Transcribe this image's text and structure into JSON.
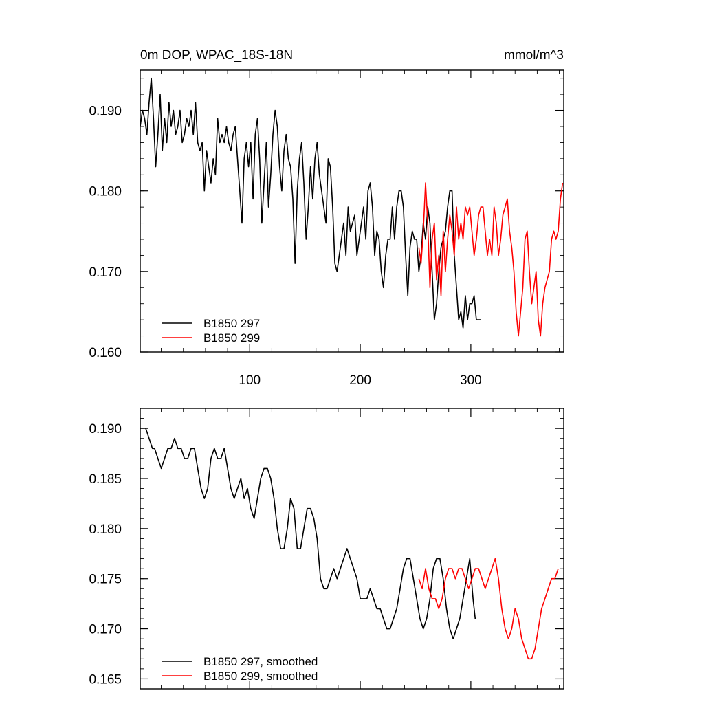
{
  "chart_data": [
    {
      "type": "line",
      "title": "0m DOP, WPAC_18S-18N",
      "units": "mmol/m^3",
      "xlim": [
        1,
        384
      ],
      "ylim": [
        0.16,
        0.195
      ],
      "xticks": [
        100,
        200,
        300
      ],
      "yticks": [
        0.16,
        0.17,
        0.18,
        0.19
      ],
      "ytick_labels": [
        "0.160",
        "0.170",
        "0.180",
        "0.190"
      ],
      "xtick_labels": [
        "100",
        "200",
        "300"
      ],
      "legend_position": "bottom-left",
      "series": [
        {
          "name": "B1850 297",
          "color": "#000000",
          "x": [
            1,
            3,
            5,
            7,
            9,
            11,
            13,
            15,
            17,
            19,
            21,
            23,
            25,
            27,
            29,
            31,
            33,
            35,
            37,
            39,
            41,
            43,
            45,
            47,
            49,
            51,
            53,
            55,
            57,
            59,
            61,
            63,
            65,
            67,
            69,
            71,
            73,
            75,
            77,
            79,
            81,
            83,
            85,
            87,
            89,
            91,
            93,
            95,
            97,
            99,
            101,
            103,
            105,
            107,
            109,
            111,
            113,
            115,
            117,
            119,
            121,
            123,
            125,
            127,
            129,
            131,
            133,
            135,
            137,
            139,
            141,
            143,
            145,
            147,
            149,
            151,
            153,
            155,
            157,
            159,
            161,
            163,
            165,
            167,
            169,
            171,
            173,
            175,
            177,
            179,
            181,
            183,
            185,
            187,
            189,
            191,
            193,
            195,
            197,
            199,
            201,
            203,
            205,
            207,
            209,
            211,
            213,
            215,
            217,
            219,
            221,
            223,
            225,
            227,
            229,
            231,
            233,
            235,
            237,
            239,
            241,
            243,
            245,
            247,
            249,
            251,
            253,
            255,
            257,
            259,
            261,
            263,
            265,
            267,
            269,
            271,
            273,
            275,
            277,
            279,
            281,
            283,
            285,
            287,
            289,
            291,
            293,
            295,
            297,
            299,
            301,
            303,
            305,
            307,
            309
          ],
          "y": [
            0.188,
            0.19,
            0.189,
            0.187,
            0.191,
            0.194,
            0.189,
            0.183,
            0.187,
            0.192,
            0.185,
            0.189,
            0.186,
            0.191,
            0.188,
            0.19,
            0.187,
            0.188,
            0.19,
            0.186,
            0.187,
            0.189,
            0.188,
            0.19,
            0.187,
            0.191,
            0.186,
            0.185,
            0.186,
            0.18,
            0.185,
            0.183,
            0.181,
            0.184,
            0.182,
            0.189,
            0.186,
            0.187,
            0.186,
            0.188,
            0.186,
            0.185,
            0.187,
            0.188,
            0.184,
            0.18,
            0.176,
            0.184,
            0.186,
            0.183,
            0.186,
            0.179,
            0.187,
            0.189,
            0.184,
            0.176,
            0.181,
            0.186,
            0.178,
            0.182,
            0.187,
            0.19,
            0.188,
            0.183,
            0.18,
            0.185,
            0.187,
            0.184,
            0.183,
            0.179,
            0.171,
            0.18,
            0.184,
            0.186,
            0.181,
            0.174,
            0.178,
            0.183,
            0.179,
            0.184,
            0.186,
            0.182,
            0.18,
            0.178,
            0.176,
            0.184,
            0.183,
            0.178,
            0.171,
            0.17,
            0.172,
            0.174,
            0.176,
            0.172,
            0.178,
            0.175,
            0.176,
            0.177,
            0.172,
            0.174,
            0.176,
            0.178,
            0.174,
            0.18,
            0.181,
            0.178,
            0.172,
            0.175,
            0.174,
            0.17,
            0.168,
            0.172,
            0.174,
            0.174,
            0.178,
            0.174,
            0.178,
            0.18,
            0.18,
            0.178,
            0.172,
            0.167,
            0.173,
            0.175,
            0.174,
            0.174,
            0.17,
            0.172,
            0.176,
            0.174,
            0.178,
            0.176,
            0.17,
            0.164,
            0.166,
            0.17,
            0.173,
            0.174,
            0.175,
            0.178,
            0.18,
            0.18,
            0.172,
            0.168,
            0.164,
            0.165,
            0.163,
            0.167,
            0.164,
            0.166,
            0.166,
            0.167,
            0.164,
            0.164,
            0.164
          ]
        },
        {
          "name": "B1850 299",
          "color": "#ff0000",
          "x": [
            253,
            255,
            257,
            259,
            261,
            263,
            265,
            267,
            269,
            271,
            273,
            275,
            277,
            279,
            281,
            283,
            285,
            287,
            289,
            291,
            293,
            295,
            297,
            299,
            301,
            303,
            305,
            307,
            309,
            311,
            313,
            315,
            317,
            319,
            321,
            323,
            325,
            327,
            329,
            331,
            333,
            335,
            337,
            339,
            341,
            343,
            345,
            347,
            349,
            351,
            353,
            355,
            357,
            359,
            361,
            363,
            365,
            367,
            369,
            371,
            373,
            375,
            377,
            379,
            381,
            383
          ],
          "y": [
            0.173,
            0.171,
            0.175,
            0.181,
            0.176,
            0.168,
            0.174,
            0.176,
            0.169,
            0.172,
            0.167,
            0.175,
            0.17,
            0.174,
            0.177,
            0.175,
            0.172,
            0.178,
            0.174,
            0.176,
            0.174,
            0.178,
            0.177,
            0.178,
            0.175,
            0.172,
            0.174,
            0.177,
            0.178,
            0.178,
            0.175,
            0.172,
            0.174,
            0.172,
            0.178,
            0.176,
            0.172,
            0.174,
            0.177,
            0.178,
            0.179,
            0.175,
            0.173,
            0.17,
            0.165,
            0.162,
            0.165,
            0.168,
            0.174,
            0.175,
            0.17,
            0.166,
            0.168,
            0.17,
            0.164,
            0.162,
            0.166,
            0.168,
            0.169,
            0.17,
            0.174,
            0.175,
            0.174,
            0.175,
            0.179,
            0.181
          ]
        }
      ]
    },
    {
      "type": "line",
      "title": "",
      "xlim": [
        1,
        384
      ],
      "ylim": [
        0.164,
        0.192
      ],
      "yticks": [
        0.165,
        0.17,
        0.175,
        0.18,
        0.185,
        0.19
      ],
      "ytick_labels": [
        "0.165",
        "0.170",
        "0.175",
        "0.180",
        "0.185",
        "0.190"
      ],
      "legend_position": "bottom-left",
      "series": [
        {
          "name": "B1850 297, smoothed",
          "color": "#000000",
          "x": [
            6,
            9,
            12,
            14,
            17,
            20,
            23,
            26,
            29,
            32,
            35,
            38,
            41,
            44,
            47,
            50,
            53,
            56,
            59,
            62,
            65,
            68,
            71,
            74,
            77,
            80,
            83,
            86,
            89,
            92,
            95,
            98,
            101,
            104,
            107,
            110,
            113,
            116,
            119,
            122,
            125,
            128,
            131,
            134,
            137,
            140,
            143,
            146,
            149,
            152,
            155,
            158,
            161,
            164,
            167,
            170,
            173,
            176,
            179,
            182,
            185,
            188,
            191,
            194,
            197,
            200,
            203,
            206,
            209,
            212,
            215,
            218,
            221,
            224,
            227,
            230,
            233,
            236,
            239,
            242,
            245,
            248,
            251,
            254,
            257,
            260,
            263,
            266,
            269,
            272,
            275,
            278,
            281,
            284,
            287,
            290,
            293,
            296,
            299,
            302,
            304
          ],
          "y": [
            0.19,
            0.189,
            0.188,
            0.188,
            0.187,
            0.186,
            0.187,
            0.188,
            0.188,
            0.189,
            0.188,
            0.188,
            0.187,
            0.187,
            0.188,
            0.188,
            0.186,
            0.184,
            0.183,
            0.184,
            0.187,
            0.188,
            0.187,
            0.187,
            0.188,
            0.186,
            0.184,
            0.183,
            0.184,
            0.185,
            0.183,
            0.184,
            0.182,
            0.181,
            0.183,
            0.185,
            0.186,
            0.186,
            0.185,
            0.183,
            0.18,
            0.178,
            0.178,
            0.18,
            0.183,
            0.182,
            0.178,
            0.178,
            0.18,
            0.182,
            0.182,
            0.181,
            0.179,
            0.175,
            0.174,
            0.174,
            0.175,
            0.176,
            0.175,
            0.176,
            0.177,
            0.178,
            0.177,
            0.176,
            0.175,
            0.173,
            0.173,
            0.173,
            0.174,
            0.173,
            0.172,
            0.172,
            0.171,
            0.17,
            0.17,
            0.171,
            0.172,
            0.174,
            0.176,
            0.177,
            0.177,
            0.175,
            0.173,
            0.171,
            0.17,
            0.171,
            0.173,
            0.176,
            0.177,
            0.177,
            0.175,
            0.172,
            0.17,
            0.169,
            0.17,
            0.171,
            0.173,
            0.175,
            0.177,
            0.173,
            0.171
          ]
        },
        {
          "name": "B1850 299, smoothed",
          "color": "#ff0000",
          "x": [
            253,
            256,
            259,
            262,
            265,
            268,
            271,
            274,
            277,
            280,
            283,
            286,
            289,
            292,
            295,
            298,
            301,
            304,
            307,
            310,
            313,
            316,
            319,
            322,
            325,
            328,
            331,
            334,
            337,
            340,
            343,
            346,
            349,
            352,
            355,
            358,
            361,
            364,
            367,
            370,
            373,
            376,
            379
          ],
          "y": [
            0.175,
            0.174,
            0.176,
            0.174,
            0.173,
            0.173,
            0.172,
            0.173,
            0.175,
            0.176,
            0.176,
            0.175,
            0.176,
            0.176,
            0.175,
            0.174,
            0.175,
            0.176,
            0.176,
            0.175,
            0.174,
            0.175,
            0.176,
            0.177,
            0.175,
            0.172,
            0.17,
            0.169,
            0.17,
            0.172,
            0.171,
            0.169,
            0.168,
            0.167,
            0.167,
            0.168,
            0.17,
            0.172,
            0.173,
            0.174,
            0.175,
            0.175,
            0.176
          ]
        }
      ]
    }
  ]
}
